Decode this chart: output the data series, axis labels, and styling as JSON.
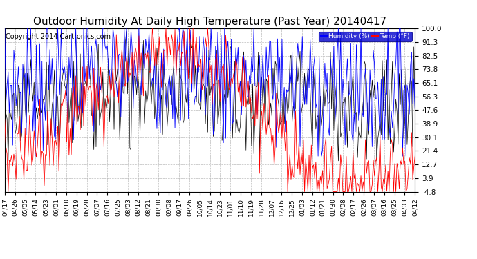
{
  "title": "Outdoor Humidity At Daily High Temperature (Past Year) 20140417",
  "copyright": "Copyright 2014 Cartronics.com",
  "legend_humidity": "Humidity (%)",
  "legend_temp": "Temp (°F)",
  "humidity_color": "#0000ff",
  "temp_color": "#ff0000",
  "black_color": "#000000",
  "bg_color": "#ffffff",
  "yticks": [
    100.0,
    91.3,
    82.5,
    73.8,
    65.1,
    56.3,
    47.6,
    38.9,
    30.1,
    21.4,
    12.7,
    3.9,
    -4.8
  ],
  "ymin": -4.8,
  "ymax": 100.0,
  "xtick_labels": [
    "04/17",
    "04/26",
    "05/05",
    "05/14",
    "05/23",
    "06/01",
    "06/10",
    "06/19",
    "06/28",
    "07/07",
    "07/16",
    "07/25",
    "08/03",
    "08/12",
    "08/21",
    "08/30",
    "09/08",
    "09/17",
    "09/26",
    "10/05",
    "10/14",
    "10/23",
    "11/01",
    "11/10",
    "11/19",
    "11/28",
    "12/07",
    "12/16",
    "12/25",
    "01/03",
    "01/12",
    "01/21",
    "01/30",
    "02/08",
    "02/17",
    "02/26",
    "03/07",
    "03/16",
    "03/25",
    "04/03",
    "04/12"
  ],
  "title_fontsize": 11,
  "copyright_fontsize": 7,
  "xtick_fontsize": 6.5,
  "ytick_fontsize": 7.5,
  "n_days": 365
}
